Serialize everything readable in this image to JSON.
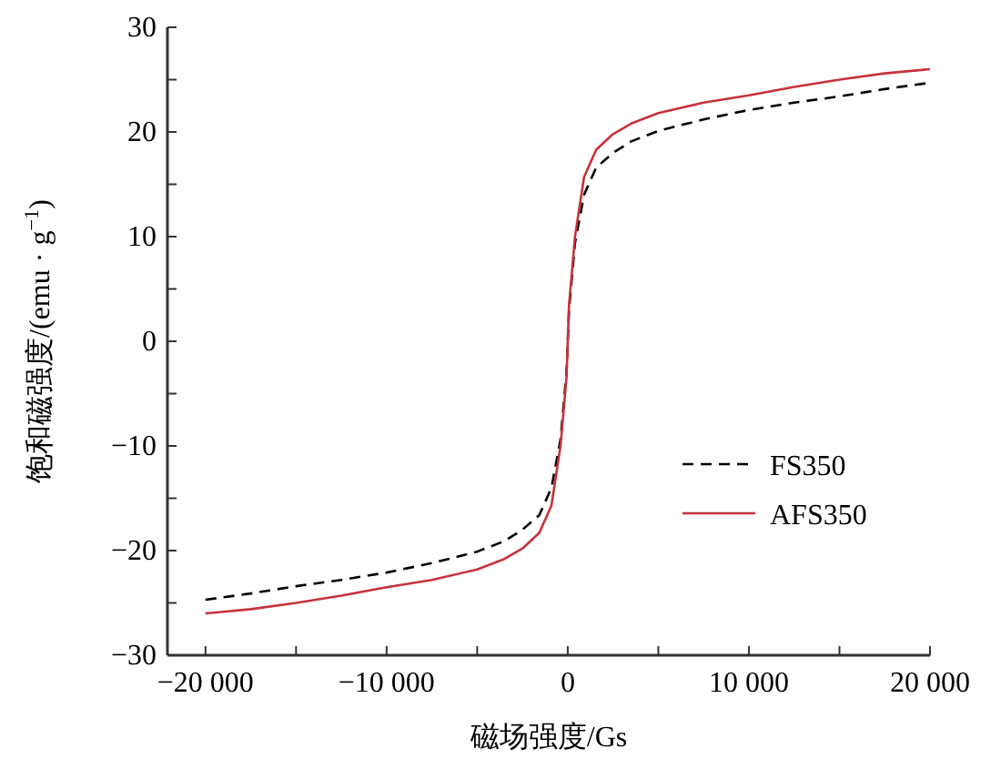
{
  "chart_data": {
    "type": "line",
    "xlabel": "磁场强度/Gs",
    "ylabel": "饱和磁强度/(emu · g$^{−1}$)",
    "xlim": [
      -22100,
      20000
    ],
    "ylim": [
      -30,
      30
    ],
    "xticks": [
      {
        "value": -20000,
        "label": "−20 000"
      },
      {
        "value": -15000,
        "label": null
      },
      {
        "value": -10000,
        "label": "−10 000"
      },
      {
        "value": -5000,
        "label": null
      },
      {
        "value": 0,
        "label": "0"
      },
      {
        "value": 5000,
        "label": null
      },
      {
        "value": 10000,
        "label": "10 000"
      },
      {
        "value": 15000,
        "label": null
      },
      {
        "value": 20000,
        "label": "20 000"
      }
    ],
    "yticks": [
      {
        "value": -30,
        "label": "−30"
      },
      {
        "value": -25,
        "label": null
      },
      {
        "value": -20,
        "label": "−20"
      },
      {
        "value": -15,
        "label": null
      },
      {
        "value": -10,
        "label": "−10"
      },
      {
        "value": -5,
        "label": null
      },
      0,
      {
        "value": 5,
        "label": null
      },
      10,
      {
        "value": 15,
        "label": null
      },
      20,
      {
        "value": 25,
        "label": null
      },
      30
    ],
    "grid": false,
    "legend": "right",
    "marker": "none",
    "series": [
      {
        "name": "FS350",
        "color": "#000000",
        "line_style": "dashed",
        "x": [
          -20000,
          -17500,
          -15000,
          -12500,
          -10000,
          -7500,
          -5000,
          -3500,
          -2500,
          -1570,
          -900,
          -400,
          -70,
          0,
          70,
          400,
          900,
          1570,
          2500,
          3500,
          5000,
          7500,
          10000,
          12500,
          15000,
          17500,
          20000
        ],
        "values": [
          -24.7,
          -24.1,
          -23.4,
          -22.8,
          -22.1,
          -21.2,
          -20.1,
          -19.1,
          -18.0,
          -16.6,
          -14.0,
          -9.4,
          -3.0,
          0,
          3.0,
          9.4,
          14.0,
          16.6,
          18.0,
          19.1,
          20.1,
          21.2,
          22.1,
          22.8,
          23.4,
          24.1,
          24.7
        ]
      },
      {
        "name": "AFS350",
        "color": "#c8323a",
        "line_style": "solid",
        "x": [
          -20000,
          -17500,
          -15000,
          -12500,
          -10000,
          -7500,
          -5000,
          -3500,
          -2500,
          -1570,
          -900,
          -400,
          -70,
          0,
          70,
          400,
          900,
          1570,
          2500,
          3500,
          5000,
          7500,
          10000,
          12500,
          15000,
          17500,
          20000
        ],
        "values": [
          -26.0,
          -25.6,
          -25.0,
          -24.3,
          -23.5,
          -22.8,
          -21.8,
          -20.8,
          -19.8,
          -18.3,
          -15.7,
          -10.0,
          -3.5,
          0,
          3.5,
          10.0,
          15.7,
          18.3,
          19.8,
          20.8,
          21.8,
          22.8,
          23.5,
          24.3,
          25.0,
          25.6,
          26.0
        ]
      }
    ]
  }
}
